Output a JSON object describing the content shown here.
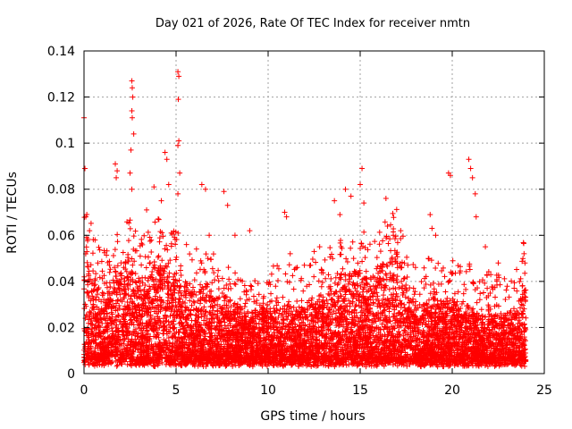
{
  "chart_data": {
    "type": "scatter",
    "title": "Day 021 of 2026, Rate Of TEC Index for receiver nmtn",
    "xlabel": "GPS time / hours",
    "ylabel": "ROTI / TECUs",
    "xlim": [
      0,
      25
    ],
    "ylim": [
      0,
      0.14
    ],
    "xticks": [
      "0",
      "5",
      "10",
      "15",
      "20",
      "25"
    ],
    "yticks": [
      "0",
      "0.02",
      "0.04",
      "0.06",
      "0.08",
      "0.1",
      "0.12",
      "0.14"
    ],
    "grid": true,
    "marker": "plus",
    "color": "#ff0000",
    "density_profile": {
      "hours": [
        0,
        0.5,
        1,
        1.5,
        2,
        2.5,
        3,
        3.5,
        4,
        4.5,
        5,
        5.5,
        6,
        6.5,
        7,
        7.5,
        8,
        8.5,
        9,
        9.5,
        10,
        10.5,
        11,
        11.5,
        12,
        12.5,
        13,
        13.5,
        14,
        14.5,
        15,
        15.5,
        16,
        16.5,
        17,
        17.5,
        18,
        18.5,
        19,
        19.5,
        20,
        20.5,
        21,
        21.5,
        22,
        22.5,
        23,
        23.5,
        24
      ],
      "typical_max": [
        0.055,
        0.045,
        0.035,
        0.04,
        0.045,
        0.05,
        0.04,
        0.045,
        0.05,
        0.045,
        0.045,
        0.04,
        0.035,
        0.04,
        0.035,
        0.035,
        0.03,
        0.028,
        0.025,
        0.028,
        0.03,
        0.03,
        0.03,
        0.028,
        0.03,
        0.032,
        0.035,
        0.04,
        0.045,
        0.045,
        0.045,
        0.042,
        0.045,
        0.05,
        0.055,
        0.04,
        0.03,
        0.03,
        0.035,
        0.03,
        0.032,
        0.028,
        0.03,
        0.025,
        0.028,
        0.025,
        0.025,
        0.028,
        0.045
      ]
    },
    "peaks": [
      {
        "x": 0.0,
        "y": 0.111
      },
      {
        "x": 0.05,
        "y": 0.089
      },
      {
        "x": 0.1,
        "y": 0.068
      },
      {
        "x": 0.3,
        "y": 0.062
      },
      {
        "x": 0.6,
        "y": 0.058
      },
      {
        "x": 1.7,
        "y": 0.091
      },
      {
        "x": 1.75,
        "y": 0.085
      },
      {
        "x": 1.8,
        "y": 0.088
      },
      {
        "x": 2.6,
        "y": 0.127
      },
      {
        "x": 2.62,
        "y": 0.124
      },
      {
        "x": 2.65,
        "y": 0.12
      },
      {
        "x": 2.6,
        "y": 0.114
      },
      {
        "x": 2.62,
        "y": 0.111
      },
      {
        "x": 2.7,
        "y": 0.104
      },
      {
        "x": 2.55,
        "y": 0.097
      },
      {
        "x": 2.5,
        "y": 0.087
      },
      {
        "x": 2.6,
        "y": 0.08
      },
      {
        "x": 3.4,
        "y": 0.071
      },
      {
        "x": 3.8,
        "y": 0.081
      },
      {
        "x": 4.2,
        "y": 0.075
      },
      {
        "x": 4.4,
        "y": 0.096
      },
      {
        "x": 4.5,
        "y": 0.093
      },
      {
        "x": 4.6,
        "y": 0.082
      },
      {
        "x": 5.1,
        "y": 0.131
      },
      {
        "x": 5.15,
        "y": 0.129
      },
      {
        "x": 5.12,
        "y": 0.119
      },
      {
        "x": 5.15,
        "y": 0.101
      },
      {
        "x": 5.1,
        "y": 0.099
      },
      {
        "x": 5.2,
        "y": 0.087
      },
      {
        "x": 5.1,
        "y": 0.078
      },
      {
        "x": 6.4,
        "y": 0.082
      },
      {
        "x": 6.6,
        "y": 0.08
      },
      {
        "x": 6.8,
        "y": 0.06
      },
      {
        "x": 7.6,
        "y": 0.079
      },
      {
        "x": 7.8,
        "y": 0.073
      },
      {
        "x": 8.2,
        "y": 0.06
      },
      {
        "x": 9.0,
        "y": 0.062
      },
      {
        "x": 10.9,
        "y": 0.07
      },
      {
        "x": 11.0,
        "y": 0.068
      },
      {
        "x": 11.2,
        "y": 0.052
      },
      {
        "x": 12.5,
        "y": 0.053
      },
      {
        "x": 12.8,
        "y": 0.055
      },
      {
        "x": 13.6,
        "y": 0.075
      },
      {
        "x": 13.9,
        "y": 0.069
      },
      {
        "x": 14.2,
        "y": 0.08
      },
      {
        "x": 14.5,
        "y": 0.077
      },
      {
        "x": 15.1,
        "y": 0.089
      },
      {
        "x": 15.0,
        "y": 0.082
      },
      {
        "x": 15.2,
        "y": 0.074
      },
      {
        "x": 16.4,
        "y": 0.076
      },
      {
        "x": 16.8,
        "y": 0.06
      },
      {
        "x": 17.2,
        "y": 0.062
      },
      {
        "x": 18.8,
        "y": 0.069
      },
      {
        "x": 18.9,
        "y": 0.063
      },
      {
        "x": 19.1,
        "y": 0.06
      },
      {
        "x": 19.8,
        "y": 0.087
      },
      {
        "x": 19.9,
        "y": 0.086
      },
      {
        "x": 20.9,
        "y": 0.093
      },
      {
        "x": 21.0,
        "y": 0.089
      },
      {
        "x": 21.1,
        "y": 0.085
      },
      {
        "x": 21.25,
        "y": 0.078
      },
      {
        "x": 21.3,
        "y": 0.068
      },
      {
        "x": 21.8,
        "y": 0.055
      },
      {
        "x": 22.5,
        "y": 0.048
      },
      {
        "x": 23.9,
        "y": 0.052
      },
      {
        "x": 23.95,
        "y": 0.048
      }
    ]
  }
}
